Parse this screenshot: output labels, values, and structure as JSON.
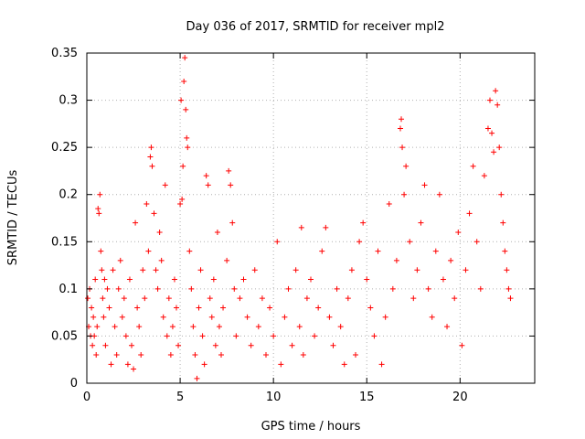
{
  "chart_data": {
    "type": "scatter",
    "title": "Day 036 of 2017, SRMTID for receiver mpl2",
    "xlabel": "GPS time / hours",
    "ylabel": "SRMTID / TECUs",
    "xlim": [
      0,
      24
    ],
    "ylim": [
      0,
      0.35
    ],
    "grid": true,
    "marker": "+",
    "color": "#ff0000",
    "x_ticks": [
      0,
      5,
      10,
      15,
      20
    ],
    "x_tick_labels": [
      "0",
      "5",
      "10",
      "15",
      "20"
    ],
    "y_ticks": [
      0,
      0.05,
      0.1,
      0.15,
      0.2,
      0.25,
      0.3,
      0.35
    ],
    "y_tick_labels": [
      "0",
      "0.05",
      "0.1",
      "0.15",
      "0.2",
      "0.25",
      "0.3",
      "0.35"
    ],
    "series": [
      {
        "name": "SRMTID",
        "note": "dense point cloud; representative sample of the visible points",
        "points": [
          [
            0.05,
            0.09
          ],
          [
            0.1,
            0.06
          ],
          [
            0.15,
            0.1
          ],
          [
            0.2,
            0.05
          ],
          [
            0.25,
            0.08
          ],
          [
            0.3,
            0.04
          ],
          [
            0.35,
            0.07
          ],
          [
            0.4,
            0.05
          ],
          [
            0.45,
            0.11
          ],
          [
            0.5,
            0.03
          ],
          [
            0.55,
            0.06
          ],
          [
            0.6,
            0.185
          ],
          [
            0.65,
            0.18
          ],
          [
            0.7,
            0.2
          ],
          [
            0.75,
            0.14
          ],
          [
            0.8,
            0.12
          ],
          [
            0.85,
            0.09
          ],
          [
            0.9,
            0.07
          ],
          [
            0.95,
            0.11
          ],
          [
            1.0,
            0.04
          ],
          [
            1.1,
            0.1
          ],
          [
            1.2,
            0.08
          ],
          [
            1.3,
            0.02
          ],
          [
            1.4,
            0.12
          ],
          [
            1.5,
            0.06
          ],
          [
            1.6,
            0.03
          ],
          [
            1.7,
            0.1
          ],
          [
            1.8,
            0.13
          ],
          [
            1.9,
            0.07
          ],
          [
            2.0,
            0.09
          ],
          [
            2.1,
            0.05
          ],
          [
            2.2,
            0.02
          ],
          [
            2.3,
            0.11
          ],
          [
            2.4,
            0.04
          ],
          [
            2.5,
            0.015
          ],
          [
            2.6,
            0.17
          ],
          [
            2.7,
            0.08
          ],
          [
            2.8,
            0.06
          ],
          [
            2.9,
            0.03
          ],
          [
            3.0,
            0.12
          ],
          [
            3.1,
            0.09
          ],
          [
            3.2,
            0.19
          ],
          [
            3.3,
            0.14
          ],
          [
            3.4,
            0.24
          ],
          [
            3.45,
            0.25
          ],
          [
            3.5,
            0.23
          ],
          [
            3.6,
            0.18
          ],
          [
            3.7,
            0.12
          ],
          [
            3.8,
            0.1
          ],
          [
            3.9,
            0.16
          ],
          [
            4.0,
            0.13
          ],
          [
            4.1,
            0.07
          ],
          [
            4.2,
            0.21
          ],
          [
            4.3,
            0.05
          ],
          [
            4.4,
            0.09
          ],
          [
            4.5,
            0.03
          ],
          [
            4.6,
            0.06
          ],
          [
            4.7,
            0.11
          ],
          [
            4.8,
            0.08
          ],
          [
            4.9,
            0.04
          ],
          [
            5.0,
            0.19
          ],
          [
            5.05,
            0.3
          ],
          [
            5.1,
            0.195
          ],
          [
            5.15,
            0.23
          ],
          [
            5.2,
            0.32
          ],
          [
            5.25,
            0.345
          ],
          [
            5.3,
            0.29
          ],
          [
            5.35,
            0.26
          ],
          [
            5.4,
            0.25
          ],
          [
            5.5,
            0.14
          ],
          [
            5.6,
            0.1
          ],
          [
            5.7,
            0.06
          ],
          [
            5.8,
            0.03
          ],
          [
            5.9,
            0.005
          ],
          [
            6.0,
            0.08
          ],
          [
            6.1,
            0.12
          ],
          [
            6.2,
            0.05
          ],
          [
            6.3,
            0.02
          ],
          [
            6.4,
            0.22
          ],
          [
            6.5,
            0.21
          ],
          [
            6.6,
            0.09
          ],
          [
            6.7,
            0.07
          ],
          [
            6.8,
            0.11
          ],
          [
            6.9,
            0.04
          ],
          [
            7.0,
            0.16
          ],
          [
            7.1,
            0.06
          ],
          [
            7.2,
            0.03
          ],
          [
            7.3,
            0.08
          ],
          [
            7.5,
            0.13
          ],
          [
            7.6,
            0.225
          ],
          [
            7.7,
            0.21
          ],
          [
            7.8,
            0.17
          ],
          [
            7.9,
            0.1
          ],
          [
            8.0,
            0.05
          ],
          [
            8.2,
            0.09
          ],
          [
            8.4,
            0.11
          ],
          [
            8.6,
            0.07
          ],
          [
            8.8,
            0.04
          ],
          [
            9.0,
            0.12
          ],
          [
            9.2,
            0.06
          ],
          [
            9.4,
            0.09
          ],
          [
            9.6,
            0.03
          ],
          [
            9.8,
            0.08
          ],
          [
            10.0,
            0.05
          ],
          [
            10.2,
            0.15
          ],
          [
            10.4,
            0.02
          ],
          [
            10.6,
            0.07
          ],
          [
            10.8,
            0.1
          ],
          [
            11.0,
            0.04
          ],
          [
            11.2,
            0.12
          ],
          [
            11.4,
            0.06
          ],
          [
            11.5,
            0.165
          ],
          [
            11.6,
            0.03
          ],
          [
            11.8,
            0.09
          ],
          [
            12.0,
            0.11
          ],
          [
            12.2,
            0.05
          ],
          [
            12.4,
            0.08
          ],
          [
            12.6,
            0.14
          ],
          [
            12.8,
            0.165
          ],
          [
            13.0,
            0.07
          ],
          [
            13.2,
            0.04
          ],
          [
            13.4,
            0.1
          ],
          [
            13.6,
            0.06
          ],
          [
            13.8,
            0.02
          ],
          [
            14.0,
            0.09
          ],
          [
            14.2,
            0.12
          ],
          [
            14.4,
            0.03
          ],
          [
            14.6,
            0.15
          ],
          [
            14.8,
            0.17
          ],
          [
            15.0,
            0.11
          ],
          [
            15.2,
            0.08
          ],
          [
            15.4,
            0.05
          ],
          [
            15.6,
            0.14
          ],
          [
            15.8,
            0.02
          ],
          [
            16.0,
            0.07
          ],
          [
            16.2,
            0.19
          ],
          [
            16.4,
            0.1
          ],
          [
            16.6,
            0.13
          ],
          [
            16.8,
            0.27
          ],
          [
            16.85,
            0.28
          ],
          [
            16.9,
            0.25
          ],
          [
            17.0,
            0.2
          ],
          [
            17.1,
            0.23
          ],
          [
            17.3,
            0.15
          ],
          [
            17.5,
            0.09
          ],
          [
            17.7,
            0.12
          ],
          [
            17.9,
            0.17
          ],
          [
            18.1,
            0.21
          ],
          [
            18.3,
            0.1
          ],
          [
            18.5,
            0.07
          ],
          [
            18.7,
            0.14
          ],
          [
            18.9,
            0.2
          ],
          [
            19.1,
            0.11
          ],
          [
            19.3,
            0.06
          ],
          [
            19.5,
            0.13
          ],
          [
            19.7,
            0.09
          ],
          [
            19.9,
            0.16
          ],
          [
            20.1,
            0.04
          ],
          [
            20.3,
            0.12
          ],
          [
            20.5,
            0.18
          ],
          [
            20.7,
            0.23
          ],
          [
            20.9,
            0.15
          ],
          [
            21.1,
            0.1
          ],
          [
            21.3,
            0.22
          ],
          [
            21.5,
            0.27
          ],
          [
            21.6,
            0.3
          ],
          [
            21.7,
            0.265
          ],
          [
            21.8,
            0.245
          ],
          [
            21.9,
            0.31
          ],
          [
            22.0,
            0.295
          ],
          [
            22.1,
            0.25
          ],
          [
            22.2,
            0.2
          ],
          [
            22.3,
            0.17
          ],
          [
            22.4,
            0.14
          ],
          [
            22.5,
            0.12
          ],
          [
            22.6,
            0.1
          ],
          [
            22.7,
            0.09
          ]
        ]
      }
    ]
  }
}
